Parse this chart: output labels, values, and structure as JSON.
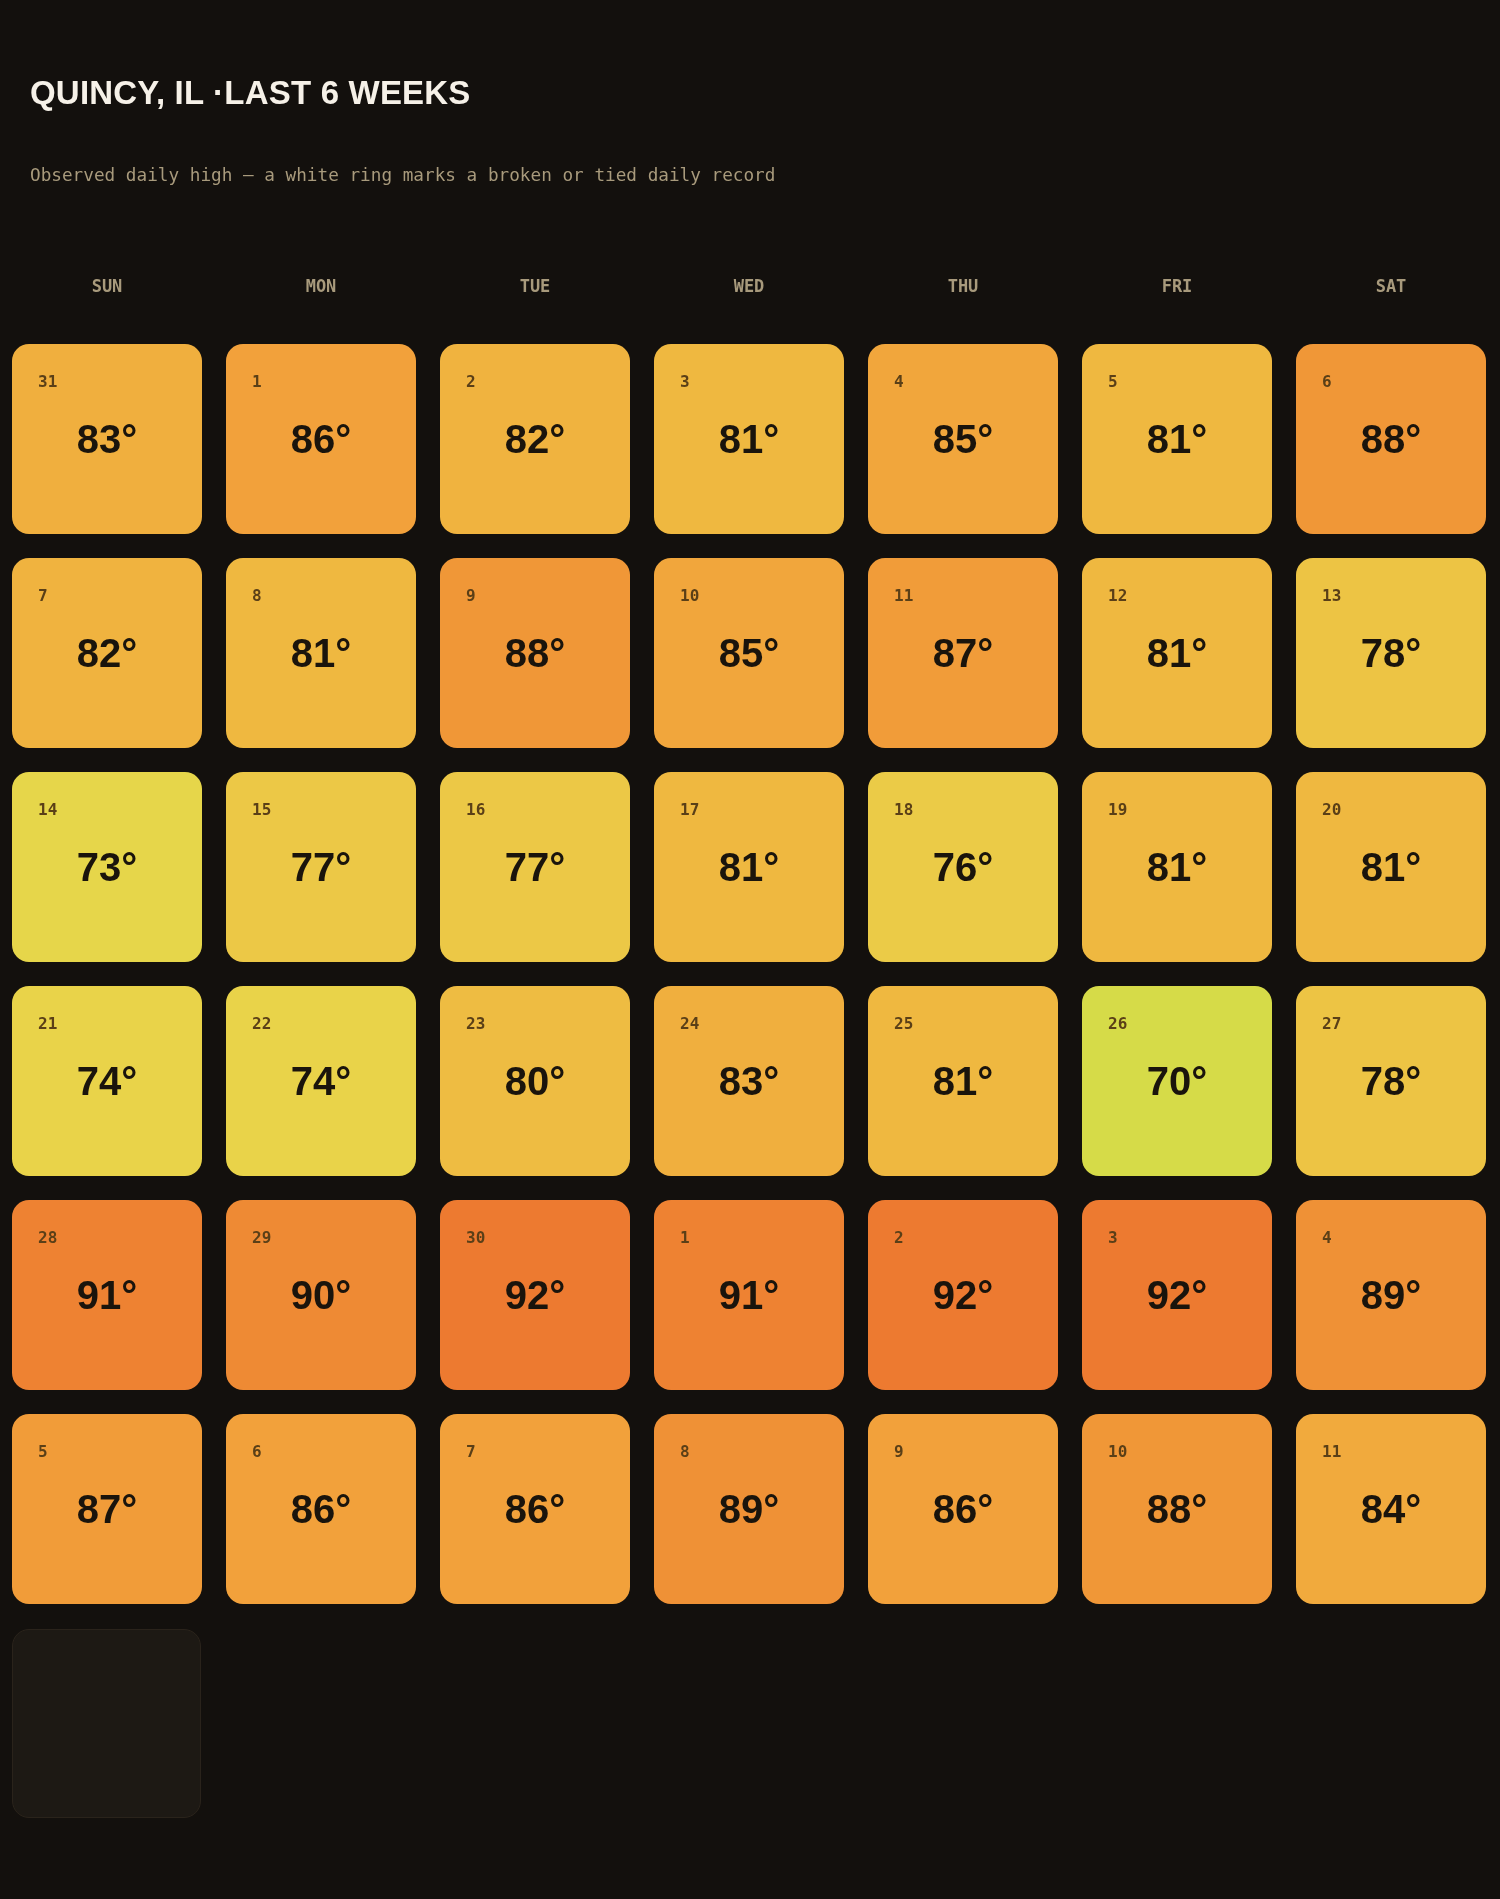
{
  "chart_data": {
    "type": "heatmap",
    "title": "QUINCY, IL ·LAST 6 WEEKS",
    "subtitle": "Observed daily high — a white ring marks a broken or tied daily record",
    "categories": [
      "SUN",
      "MON",
      "TUE",
      "WED",
      "THU",
      "FRI",
      "SAT"
    ],
    "y_categories": [
      null,
      null,
      null,
      null,
      null,
      null
    ],
    "cells": [
      [
        83,
        86,
        82,
        81,
        85,
        81,
        88
      ],
      [
        82,
        81,
        88,
        85,
        87,
        81,
        78
      ],
      [
        73,
        77,
        77,
        81,
        76,
        81,
        81
      ],
      [
        74,
        74,
        80,
        83,
        81,
        70,
        78
      ],
      [
        91,
        90,
        92,
        91,
        92,
        92,
        89
      ],
      [
        87,
        86,
        86,
        89,
        86,
        88,
        84
      ]
    ],
    "cell_labels": [
      [
        "83°",
        "86°",
        "82°",
        "81°",
        "85°",
        "81°",
        "88°"
      ],
      [
        "82°",
        "81°",
        "88°",
        "85°",
        "87°",
        "81°",
        "78°"
      ],
      [
        "73°",
        "77°",
        "77°",
        "81°",
        "76°",
        "81°",
        "81°"
      ],
      [
        "74°",
        "74°",
        "80°",
        "83°",
        "81°",
        "70°",
        "78°"
      ],
      [
        "91°",
        "90°",
        "92°",
        "91°",
        "92°",
        "92°",
        "89°"
      ],
      [
        "87°",
        "86°",
        "86°",
        "89°",
        "86°",
        "88°",
        "84°"
      ]
    ],
    "annotations": [
      "31",
      "1",
      "2",
      "3",
      "4",
      "5",
      "6",
      "7",
      "8",
      "9",
      "10",
      "11",
      "12",
      "13",
      "14",
      "15",
      "16",
      "17",
      "18",
      "19",
      "20",
      "21",
      "22",
      "23",
      "24",
      "25",
      "26",
      "27",
      "28",
      "29",
      "30",
      "1",
      "2",
      "3",
      "4",
      "5",
      "6",
      "7",
      "8",
      "9",
      "10",
      "11"
    ]
  }
}
